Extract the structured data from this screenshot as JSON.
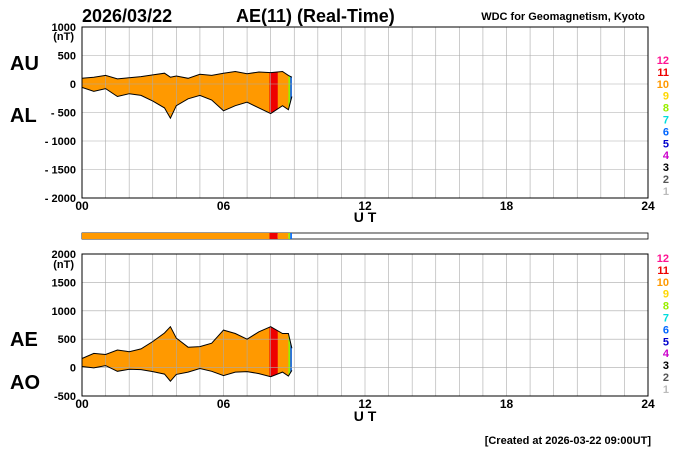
{
  "header": {
    "date": "2026/03/22",
    "title": "AE(11) (Real-Time)",
    "source": "WDC for Geomagnetism, Kyoto"
  },
  "footer": {
    "created": "[Created at 2026-03-22 09:00UT]"
  },
  "colors": {
    "scale_labels": [
      "12",
      "11",
      "10",
      "9",
      "8",
      "7",
      "6",
      "5",
      "4",
      "3",
      "2",
      "1"
    ],
    "scale_colors": [
      "#ff1493",
      "#ee0000",
      "#ff9900",
      "#ffd700",
      "#99ee00",
      "#00dddd",
      "#0066ff",
      "#0000cc",
      "#cc00cc",
      "#000000",
      "#555555",
      "#bbbbbb"
    ],
    "main_fill": "#ff9900",
    "red_band": "#ee1111",
    "grid": "#aaaaaa"
  },
  "chart_data": [
    {
      "type": "area",
      "panel": "top",
      "left_labels": [
        "AU",
        "AL"
      ],
      "unit": "(nT)",
      "xlabel": "U T",
      "xlim": [
        0,
        24
      ],
      "ylim": [
        -2000,
        1000
      ],
      "xticks": [
        "00",
        "06",
        "12",
        "18",
        "24"
      ],
      "yticks": [
        "1000",
        "500",
        "0",
        "- 500",
        "- 1000",
        "- 1500",
        "- 2000"
      ],
      "ytick_values": [
        1000,
        500,
        0,
        -500,
        -1000,
        -1500,
        -2000
      ],
      "x": [
        0,
        0.5,
        1,
        1.5,
        2,
        2.5,
        3,
        3.5,
        3.75,
        4,
        4.5,
        5,
        5.5,
        6,
        6.5,
        7,
        7.5,
        8,
        8.5,
        8.75,
        8.9
      ],
      "series": [
        {
          "name": "AU",
          "values": [
            100,
            120,
            150,
            90,
            110,
            130,
            160,
            190,
            120,
            140,
            100,
            170,
            150,
            190,
            220,
            180,
            210,
            200,
            220,
            150,
            120
          ]
        },
        {
          "name": "AL",
          "values": [
            -60,
            -130,
            -80,
            -220,
            -170,
            -200,
            -300,
            -420,
            -600,
            -380,
            -260,
            -200,
            -280,
            -470,
            -380,
            -320,
            -420,
            -520,
            -380,
            -450,
            -220
          ]
        }
      ],
      "color_bands": [
        {
          "from": 7.95,
          "to": 8.3,
          "level": "11"
        },
        {
          "from": 8.75,
          "to": 8.83,
          "level": "8"
        },
        {
          "from": 8.83,
          "to": 8.9,
          "level": "6"
        }
      ]
    },
    {
      "type": "bar",
      "panel": "activity-strip",
      "segments": [
        {
          "from": 0,
          "to": 7.95,
          "level": "10"
        },
        {
          "from": 7.95,
          "to": 8.3,
          "level": "11"
        },
        {
          "from": 8.3,
          "to": 8.75,
          "level": "10"
        },
        {
          "from": 8.75,
          "to": 8.83,
          "level": "8"
        },
        {
          "from": 8.83,
          "to": 8.9,
          "level": "6"
        }
      ],
      "xlim": [
        0,
        24
      ]
    },
    {
      "type": "area",
      "panel": "bottom",
      "left_labels": [
        "AE",
        "AO"
      ],
      "unit": "(nT)",
      "xlabel": "U T",
      "xlim": [
        0,
        24
      ],
      "ylim": [
        -500,
        2000
      ],
      "xticks": [
        "00",
        "06",
        "12",
        "18",
        "24"
      ],
      "yticks": [
        "2000",
        "1500",
        "1000",
        "500",
        "0",
        "-500"
      ],
      "ytick_values": [
        2000,
        1500,
        1000,
        500,
        0,
        -500
      ],
      "x": [
        0,
        0.5,
        1,
        1.5,
        2,
        2.5,
        3,
        3.5,
        3.75,
        4,
        4.5,
        5,
        5.5,
        6,
        6.5,
        7,
        7.5,
        8,
        8.5,
        8.75,
        8.9
      ],
      "series": [
        {
          "name": "AE",
          "values": [
            160,
            250,
            230,
            310,
            280,
            330,
            460,
            610,
            720,
            520,
            360,
            370,
            430,
            660,
            600,
            500,
            630,
            720,
            600,
            600,
            340
          ]
        },
        {
          "name": "AO",
          "values": [
            20,
            -5,
            35,
            -65,
            -30,
            -35,
            -70,
            -115,
            -240,
            -120,
            -80,
            -15,
            -65,
            -140,
            -80,
            -70,
            -105,
            -160,
            -80,
            -150,
            -50
          ]
        }
      ],
      "color_bands": [
        {
          "from": 7.95,
          "to": 8.3,
          "level": "11"
        },
        {
          "from": 8.75,
          "to": 8.83,
          "level": "8"
        },
        {
          "from": 8.83,
          "to": 8.9,
          "level": "6"
        }
      ]
    }
  ]
}
